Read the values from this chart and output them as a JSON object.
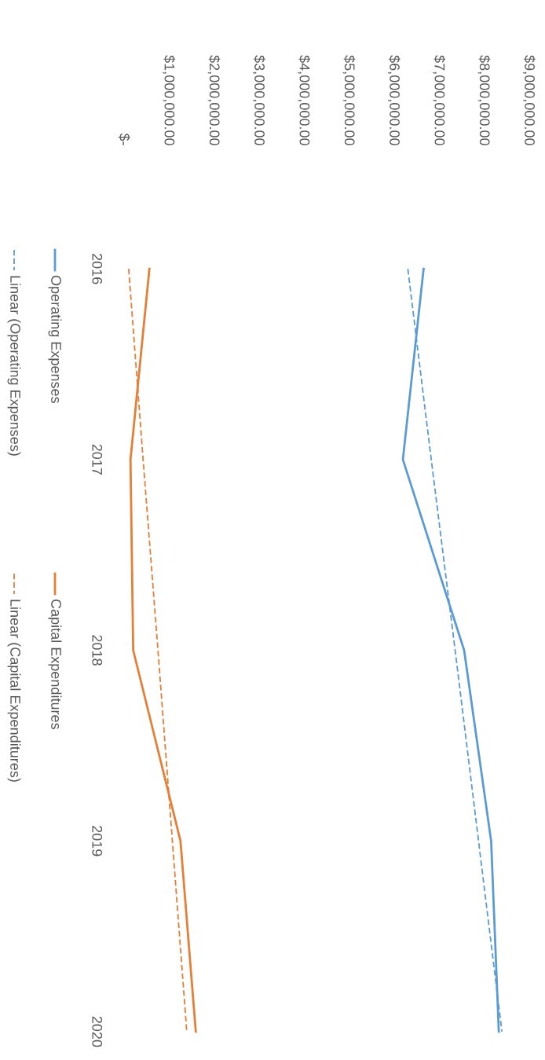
{
  "chart_data": {
    "type": "line",
    "categories": [
      "2016",
      "2017",
      "2018",
      "2019",
      "2020"
    ],
    "series": [
      {
        "name": "Operating Expenses",
        "color": "#5b9bd5",
        "values": [
          6670000,
          6210000,
          7570000,
          8170000,
          8340000
        ]
      },
      {
        "name": "Capital Expenditures",
        "color": "#e67e35",
        "values": [
          580000,
          160000,
          220000,
          1270000,
          1610000
        ]
      },
      {
        "name": "Linear (Operating Expenses)",
        "color": "#5b9bd5",
        "line_style": "dashed",
        "values": [
          6320000,
          6840000,
          7370000,
          7890000,
          8410000
        ]
      },
      {
        "name": "Linear (Capital Expenditures)",
        "color": "#e67e35",
        "line_style": "dashed",
        "values": [
          120000,
          440000,
          770000,
          1090000,
          1410000
        ]
      }
    ],
    "orientation": "horizontal",
    "xlim": [
      0,
      9000000
    ],
    "xticks": [
      {
        "value": 0,
        "label": "$-"
      },
      {
        "value": 1000000,
        "label": "$1,000,000.00"
      },
      {
        "value": 2000000,
        "label": "$2,000,000.00"
      },
      {
        "value": 3000000,
        "label": "$3,000,000.00"
      },
      {
        "value": 4000000,
        "label": "$4,000,000.00"
      },
      {
        "value": 5000000,
        "label": "$5,000,000.00"
      },
      {
        "value": 6000000,
        "label": "$6,000,000.00"
      },
      {
        "value": 7000000,
        "label": "$7,000,000.00"
      },
      {
        "value": 8000000,
        "label": "$8,000,000.00"
      },
      {
        "value": 9000000,
        "label": "$9,000,000.00"
      }
    ],
    "grid": false,
    "legend": "left",
    "marker": "none",
    "line_style": "solid"
  }
}
